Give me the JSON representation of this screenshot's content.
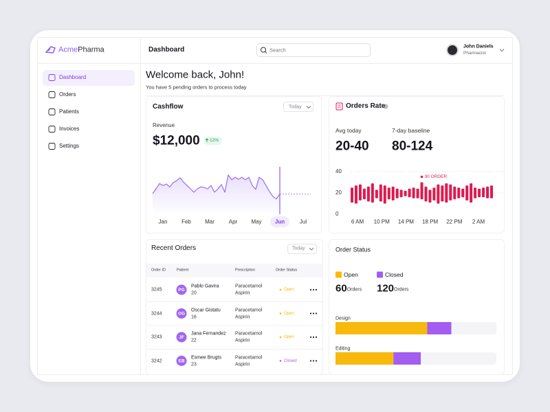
{
  "brand": {
    "prefix": "Acme",
    "suffix": "Pharma"
  },
  "header": {
    "title": "Dashboard",
    "search_placeholder": "Search",
    "user": {
      "name": "John Daniels",
      "role": "Pharmacist"
    }
  },
  "nav": [
    {
      "label": "Dashboard",
      "active": true
    },
    {
      "label": "Orders"
    },
    {
      "label": "Patients"
    },
    {
      "label": "Invoices"
    },
    {
      "label": "Settings"
    }
  ],
  "welcome": {
    "title": "Welcome back, John!",
    "subtitle": "You have 5 pending orders to process today"
  },
  "cashflow": {
    "title": "Cashflow",
    "filter": "Today",
    "metric_label": "Revenue",
    "metric_value": "$12,000",
    "change": "12%",
    "chart": {
      "type": "line",
      "categories": [
        "Jan",
        "Feb",
        "Mar",
        "Apr",
        "May",
        "Jun",
        "Jul"
      ],
      "active_category": "Jun",
      "values": [
        40,
        50,
        61,
        57,
        60,
        54,
        63,
        67,
        73,
        64,
        57,
        50,
        43,
        50,
        54,
        53,
        50,
        57,
        43,
        50,
        59,
        43,
        79,
        69,
        74,
        70,
        74,
        69,
        74,
        57,
        49,
        74,
        69,
        57,
        44,
        34,
        29,
        39
      ],
      "ylim": [
        0,
        100
      ],
      "color": "#9b6cf0"
    }
  },
  "orders_rate": {
    "title": "Orders Rate",
    "stats": [
      {
        "label": "Avg today",
        "value": "20-40"
      },
      {
        "label": "7-day baseline",
        "value": "80-124"
      }
    ],
    "chart": {
      "type": "range_bar",
      "categories": [
        "6 AM",
        "10 PM",
        "14 PM",
        "18 PM",
        "22 PM",
        "2 AM"
      ],
      "lows": [
        11,
        10,
        13,
        14,
        12,
        11,
        15,
        12,
        10,
        14,
        13,
        15,
        16,
        17,
        16,
        15,
        15,
        14,
        12,
        11,
        13,
        10,
        12,
        11,
        13,
        14,
        15,
        16,
        13,
        11,
        15,
        16,
        16,
        15,
        15
      ],
      "highs": [
        25,
        27,
        28,
        24,
        26,
        29,
        23,
        28,
        27,
        25,
        26,
        24,
        23,
        22,
        24,
        25,
        24,
        30,
        26,
        23,
        25,
        28,
        27,
        29,
        28,
        26,
        25,
        24,
        27,
        29,
        25,
        24,
        25,
        26,
        27
      ],
      "ylim": [
        0,
        40
      ],
      "yticks": [
        0,
        20,
        40
      ],
      "grid": true,
      "annotation": "30 ORDER",
      "color": "#e0194f"
    }
  },
  "recent_orders": {
    "title": "Recent Orders",
    "filter": "Today",
    "columns": [
      "Order ID",
      "Patient",
      "Prescription",
      "Order Status"
    ],
    "rows": [
      {
        "id": 3245,
        "initials": "PG",
        "name": "Pablo Gavira",
        "age": 20,
        "prescription": [
          "Paracetamol",
          "Aspirin"
        ],
        "status": "Open"
      },
      {
        "id": 3244,
        "initials": "OG",
        "name": "Oscar Gistatu",
        "age": 16,
        "prescription": [
          "Paracetamol",
          "Aspirin"
        ],
        "status": "Open"
      },
      {
        "id": 3243,
        "initials": "JF",
        "name": "Jana Fernandez",
        "age": 22,
        "prescription": [
          "Paracetamol",
          "Aspirin"
        ],
        "status": "Open"
      },
      {
        "id": 3242,
        "initials": "EB",
        "name": "Esmee Brugts",
        "age": 23,
        "prescription": [
          "Paracetamol",
          "Aspirin"
        ],
        "status": "Closed"
      }
    ]
  },
  "order_status": {
    "title": "Order Status",
    "unit": "Orders",
    "chart": {
      "type": "stacked_bar",
      "categories": [
        "Design",
        "Editing"
      ],
      "xlim": [
        0,
        100
      ],
      "series": [
        {
          "name": "Open",
          "color": "#f7b90c",
          "count": 60,
          "values": [
            57,
            36
          ]
        },
        {
          "name": "Closed",
          "color": "#a35df0",
          "count": 120,
          "values": [
            15,
            17
          ]
        }
      ]
    }
  }
}
